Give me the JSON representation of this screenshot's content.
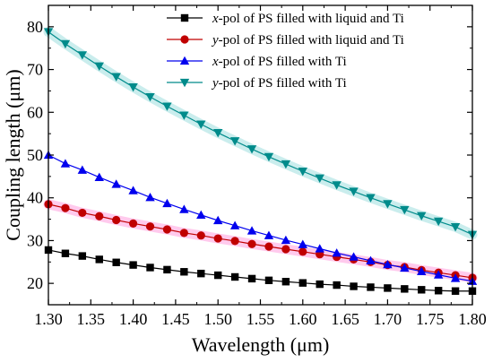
{
  "chart_data": {
    "type": "line",
    "xlabel": "Wavelength (μm)",
    "ylabel": "Coupling length (μm)",
    "xlim": [
      1.3,
      1.8
    ],
    "ylim": [
      15,
      85
    ],
    "xticks": [
      "1.30",
      "1.35",
      "1.40",
      "1.45",
      "1.50",
      "1.55",
      "1.60",
      "1.65",
      "1.70",
      "1.75",
      "1.80"
    ],
    "yticks": [
      "20",
      "30",
      "40",
      "50",
      "60",
      "70",
      "80"
    ],
    "grid": false,
    "legend_position": "top-right",
    "x": [
      1.3,
      1.32,
      1.34,
      1.36,
      1.38,
      1.4,
      1.42,
      1.44,
      1.46,
      1.48,
      1.5,
      1.52,
      1.54,
      1.56,
      1.58,
      1.6,
      1.62,
      1.64,
      1.66,
      1.68,
      1.7,
      1.72,
      1.74,
      1.76,
      1.78,
      1.8
    ],
    "series": [
      {
        "name_prefix": "x",
        "name_suffix": "-pol of PS filled with liquid and Ti",
        "marker": "square",
        "color": "#000000",
        "values": [
          27.8,
          27.0,
          26.4,
          25.6,
          24.9,
          24.3,
          23.7,
          23.2,
          22.7,
          22.3,
          21.9,
          21.5,
          21.1,
          20.7,
          20.4,
          20.1,
          19.8,
          19.6,
          19.3,
          19.1,
          18.9,
          18.7,
          18.5,
          18.3,
          18.2,
          18.2
        ]
      },
      {
        "name_prefix": "y",
        "name_suffix": "-pol of PS filled with liquid and Ti",
        "marker": "circle",
        "color": "#c00000",
        "band_color": "#ff66cc",
        "values": [
          38.5,
          37.6,
          36.5,
          35.7,
          34.8,
          34.0,
          33.3,
          32.6,
          31.8,
          31.2,
          30.5,
          29.9,
          29.2,
          28.6,
          28.0,
          27.4,
          26.8,
          26.2,
          25.6,
          25.0,
          24.3,
          23.8,
          23.1,
          22.5,
          21.9,
          21.3
        ]
      },
      {
        "name_prefix": "x",
        "name_suffix": "-pol of PS filled with Ti",
        "marker": "triangle-up",
        "color": "#0000ee",
        "values": [
          50.0,
          48.0,
          46.5,
          44.8,
          43.2,
          41.7,
          40.1,
          38.7,
          37.3,
          36.0,
          34.7,
          33.5,
          32.3,
          31.2,
          30.1,
          29.1,
          28.1,
          27.1,
          26.2,
          25.3,
          24.4,
          23.6,
          22.8,
          22.0,
          21.2,
          20.5
        ]
      },
      {
        "name_prefix": "y",
        "name_suffix": "-pol of PS filled with Ti",
        "marker": "triangle-down",
        "color": "#008b8b",
        "band_color": "#66cccc",
        "values": [
          78.8,
          76.0,
          73.4,
          70.8,
          68.3,
          65.9,
          63.6,
          61.4,
          59.3,
          57.2,
          55.2,
          53.3,
          51.4,
          49.6,
          47.9,
          46.2,
          44.6,
          43.0,
          41.5,
          40.0,
          38.6,
          37.2,
          35.8,
          34.5,
          33.2,
          31.4
        ]
      }
    ]
  }
}
